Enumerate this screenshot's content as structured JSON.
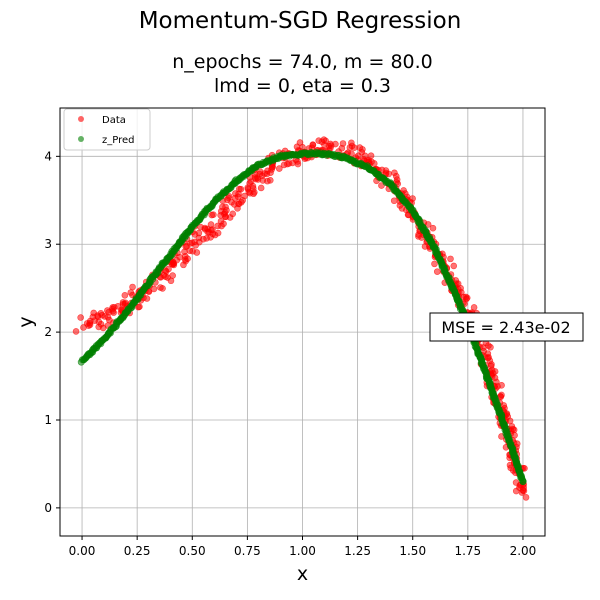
{
  "figure": {
    "suptitle": "Momentum-SGD Regression",
    "subtitle_line1": "n_epochs = 74.0, m = 80.0",
    "subtitle_line2": "lmd = 0, eta = 0.3",
    "annotation": "MSE = 2.43e-02"
  },
  "chart_data": {
    "type": "scatter",
    "xlabel": "x",
    "ylabel": "y",
    "xlim": [
      -0.1,
      2.1
    ],
    "ylim": [
      -0.32,
      4.55
    ],
    "xticks": [
      0.0,
      0.25,
      0.5,
      0.75,
      1.0,
      1.25,
      1.5,
      1.75,
      2.0
    ],
    "xtick_labels": [
      "0.00",
      "0.25",
      "0.50",
      "0.75",
      "1.00",
      "1.25",
      "1.50",
      "1.75",
      "2.00"
    ],
    "yticks": [
      0,
      1,
      2,
      3,
      4
    ],
    "ytick_labels": [
      "0",
      "1",
      "2",
      "3",
      "4"
    ],
    "grid": true,
    "legend_position": "top-left",
    "series": [
      {
        "name": "Data",
        "color": "#ff0000",
        "x": [
          0.0,
          0.1,
          0.2,
          0.3,
          0.4,
          0.5,
          0.6,
          0.7,
          0.8,
          0.9,
          1.0,
          1.1,
          1.2,
          1.3,
          1.4,
          1.5,
          1.6,
          1.7,
          1.8,
          1.9,
          2.0
        ],
        "y": [
          2.1,
          2.15,
          2.3,
          2.5,
          2.75,
          3.0,
          3.25,
          3.5,
          3.75,
          3.95,
          4.05,
          4.1,
          4.05,
          3.95,
          3.7,
          3.35,
          2.95,
          2.5,
          1.95,
          1.15,
          0.2
        ]
      },
      {
        "name": "z_Pred",
        "color": "#008000",
        "x": [
          0.0,
          0.1,
          0.2,
          0.3,
          0.4,
          0.5,
          0.6,
          0.7,
          0.8,
          0.9,
          1.0,
          1.1,
          1.2,
          1.3,
          1.4,
          1.5,
          1.6,
          1.7,
          1.8,
          1.9,
          2.0
        ],
        "y": [
          1.67,
          1.92,
          2.22,
          2.55,
          2.88,
          3.2,
          3.48,
          3.72,
          3.9,
          4.0,
          4.03,
          4.03,
          3.98,
          3.87,
          3.68,
          3.38,
          2.95,
          2.4,
          1.75,
          1.05,
          0.3
        ]
      }
    ]
  }
}
